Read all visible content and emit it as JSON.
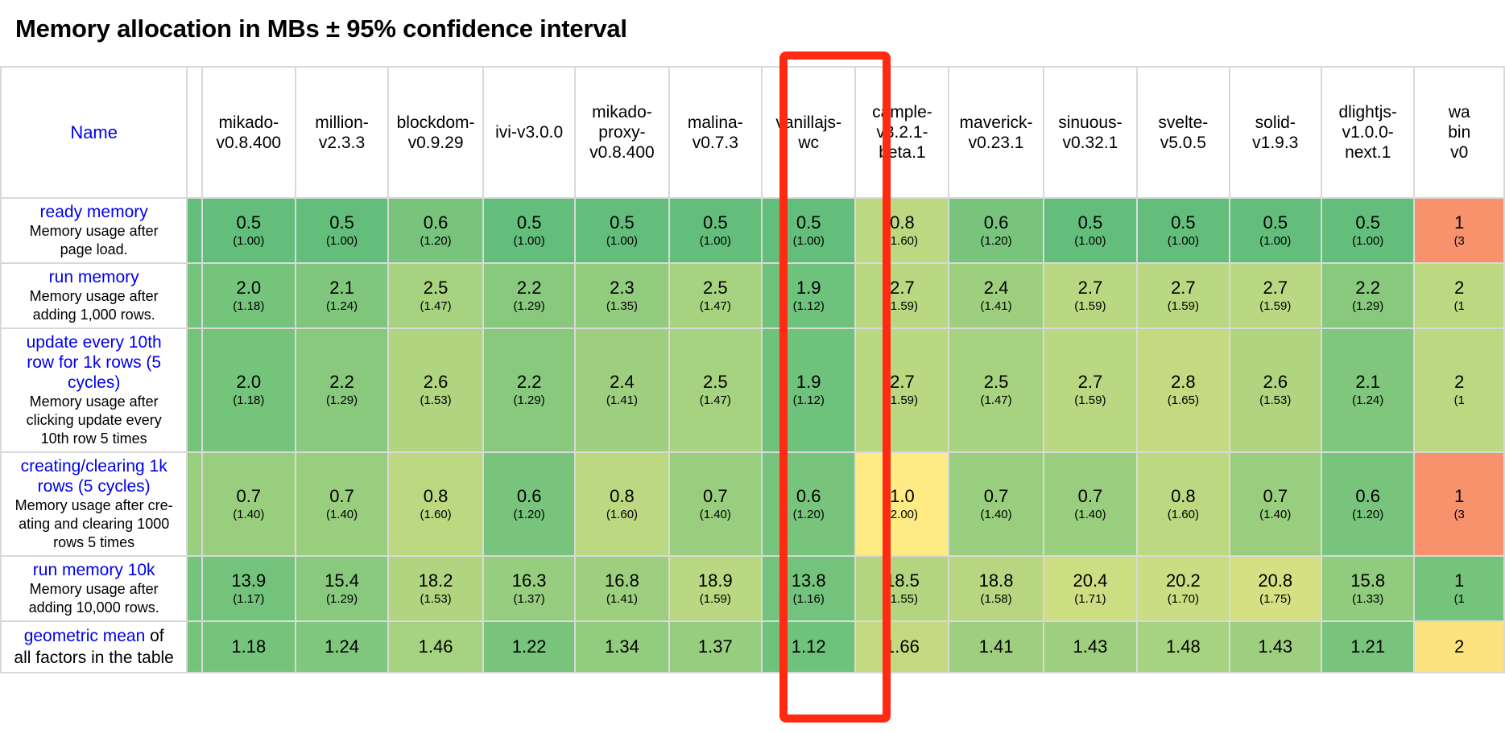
{
  "title": "Memory allocation in MBs ± 95% confidence interval",
  "name_header": "Name",
  "colors": {
    "c100": "#63be7b",
    "c112": "#6fc27c",
    "c116": "#73c37c",
    "c117": "#74c37c",
    "c118": "#75c47c",
    "c120": "#78c47d",
    "c124": "#80c77d",
    "c129": "#88c97e",
    "c133": "#90cb7e",
    "c135": "#92cc7e",
    "c137": "#96cd7f",
    "c140": "#9ace7f",
    "c141": "#9dcf7f",
    "c147": "#a7d27f",
    "c153": "#b0d480",
    "c155": "#b4d580",
    "c158": "#b8d680",
    "c159": "#bad781",
    "c160": "#bcd881",
    "c165": "#c4da81",
    "c170": "#cbdd82",
    "c171": "#cddd82",
    "c175": "#d4e082",
    "c200": "#ffeb84",
    "c214": "#fde37e",
    "c350": "#f8926c",
    "highlight": "#ff2a12",
    "link": "#0000ee"
  },
  "frameworks": [
    "mikado-\nv0.8.400",
    "million-\nv2.3.3",
    "blockdom-\nv0.9.29",
    "ivi-v3.0.0",
    "mikado-\nproxy-\nv0.8.400",
    "malina-\nv0.7.3",
    "vanillajs-\nwc",
    "cample-\nv3.2.1-\nbeta.1",
    "maverick-\nv0.23.1",
    "sinuous-\nv0.32.1",
    "svelte-\nv5.0.5",
    "solid-\nv1.9.3",
    "dlightjs-\nv1.0.0-\nnext.1",
    "wa\nbin\nv0"
  ],
  "rows": [
    {
      "title": "ready memory",
      "desc": "Memory usage after\npage load.",
      "height": 75,
      "cells": [
        {
          "v": "0.5",
          "f": "(1.00)",
          "c": "c100"
        },
        {
          "v": "0.5",
          "f": "(1.00)",
          "c": "c100"
        },
        {
          "v": "0.6",
          "f": "(1.20)",
          "c": "c120"
        },
        {
          "v": "0.5",
          "f": "(1.00)",
          "c": "c100"
        },
        {
          "v": "0.5",
          "f": "(1.00)",
          "c": "c100"
        },
        {
          "v": "0.5",
          "f": "(1.00)",
          "c": "c100"
        },
        {
          "v": "0.5",
          "f": "(1.00)",
          "c": "c100"
        },
        {
          "v": "0.8",
          "f": "(1.60)",
          "c": "c160"
        },
        {
          "v": "0.6",
          "f": "(1.20)",
          "c": "c120"
        },
        {
          "v": "0.5",
          "f": "(1.00)",
          "c": "c100"
        },
        {
          "v": "0.5",
          "f": "(1.00)",
          "c": "c100"
        },
        {
          "v": "0.5",
          "f": "(1.00)",
          "c": "c100"
        },
        {
          "v": "0.5",
          "f": "(1.00)",
          "c": "c100"
        },
        {
          "v": "1",
          "f": "(3",
          "c": "c350"
        }
      ]
    },
    {
      "title": "run memory",
      "desc": "Memory usage after\nadding 1,000 rows.",
      "height": 75,
      "cells": [
        {
          "v": "2.0",
          "f": "(1.18)",
          "c": "c118"
        },
        {
          "v": "2.1",
          "f": "(1.24)",
          "c": "c124"
        },
        {
          "v": "2.5",
          "f": "(1.47)",
          "c": "c147"
        },
        {
          "v": "2.2",
          "f": "(1.29)",
          "c": "c129"
        },
        {
          "v": "2.3",
          "f": "(1.35)",
          "c": "c135"
        },
        {
          "v": "2.5",
          "f": "(1.47)",
          "c": "c147"
        },
        {
          "v": "1.9",
          "f": "(1.12)",
          "c": "c112"
        },
        {
          "v": "2.7",
          "f": "(1.59)",
          "c": "c159"
        },
        {
          "v": "2.4",
          "f": "(1.41)",
          "c": "c141"
        },
        {
          "v": "2.7",
          "f": "(1.59)",
          "c": "c159"
        },
        {
          "v": "2.7",
          "f": "(1.59)",
          "c": "c159"
        },
        {
          "v": "2.7",
          "f": "(1.59)",
          "c": "c159"
        },
        {
          "v": "2.2",
          "f": "(1.29)",
          "c": "c129"
        },
        {
          "v": "2",
          "f": "(1",
          "c": "c160"
        }
      ]
    },
    {
      "title": "update every 10th\nrow for 1k rows (5\ncycles)",
      "desc": "Memory usage after\nclicking update every\n10th row 5 times",
      "height": 138,
      "cells": [
        {
          "v": "2.0",
          "f": "(1.18)",
          "c": "c118"
        },
        {
          "v": "2.2",
          "f": "(1.29)",
          "c": "c129"
        },
        {
          "v": "2.6",
          "f": "(1.53)",
          "c": "c153"
        },
        {
          "v": "2.2",
          "f": "(1.29)",
          "c": "c129"
        },
        {
          "v": "2.4",
          "f": "(1.41)",
          "c": "c141"
        },
        {
          "v": "2.5",
          "f": "(1.47)",
          "c": "c147"
        },
        {
          "v": "1.9",
          "f": "(1.12)",
          "c": "c112"
        },
        {
          "v": "2.7",
          "f": "(1.59)",
          "c": "c159"
        },
        {
          "v": "2.5",
          "f": "(1.47)",
          "c": "c147"
        },
        {
          "v": "2.7",
          "f": "(1.59)",
          "c": "c159"
        },
        {
          "v": "2.8",
          "f": "(1.65)",
          "c": "c165"
        },
        {
          "v": "2.6",
          "f": "(1.53)",
          "c": "c153"
        },
        {
          "v": "2.1",
          "f": "(1.24)",
          "c": "c124"
        },
        {
          "v": "2",
          "f": "(1",
          "c": "c160"
        }
      ]
    },
    {
      "title": "creating/clearing 1k\nrows (5 cycles)",
      "desc": "Memory usage after cre-\nating and clearing 1000\nrows 5 times",
      "height": 117,
      "cells": [
        {
          "v": "0.7",
          "f": "(1.40)",
          "c": "c140"
        },
        {
          "v": "0.7",
          "f": "(1.40)",
          "c": "c140"
        },
        {
          "v": "0.8",
          "f": "(1.60)",
          "c": "c160"
        },
        {
          "v": "0.6",
          "f": "(1.20)",
          "c": "c120"
        },
        {
          "v": "0.8",
          "f": "(1.60)",
          "c": "c160"
        },
        {
          "v": "0.7",
          "f": "(1.40)",
          "c": "c140"
        },
        {
          "v": "0.6",
          "f": "(1.20)",
          "c": "c120"
        },
        {
          "v": "1.0",
          "f": "(2.00)",
          "c": "c200"
        },
        {
          "v": "0.7",
          "f": "(1.40)",
          "c": "c140"
        },
        {
          "v": "0.7",
          "f": "(1.40)",
          "c": "c140"
        },
        {
          "v": "0.8",
          "f": "(1.60)",
          "c": "c160"
        },
        {
          "v": "0.7",
          "f": "(1.40)",
          "c": "c140"
        },
        {
          "v": "0.6",
          "f": "(1.20)",
          "c": "c120"
        },
        {
          "v": "1",
          "f": "(3",
          "c": "c350"
        }
      ]
    },
    {
      "title": "run memory 10k",
      "desc": "Memory usage after\nadding 10,000 rows.",
      "height": 75,
      "cells": [
        {
          "v": "13.9",
          "f": "(1.17)",
          "c": "c117"
        },
        {
          "v": "15.4",
          "f": "(1.29)",
          "c": "c129"
        },
        {
          "v": "18.2",
          "f": "(1.53)",
          "c": "c153"
        },
        {
          "v": "16.3",
          "f": "(1.37)",
          "c": "c137"
        },
        {
          "v": "16.8",
          "f": "(1.41)",
          "c": "c141"
        },
        {
          "v": "18.9",
          "f": "(1.59)",
          "c": "c159"
        },
        {
          "v": "13.8",
          "f": "(1.16)",
          "c": "c116"
        },
        {
          "v": "18.5",
          "f": "(1.55)",
          "c": "c155"
        },
        {
          "v": "18.8",
          "f": "(1.58)",
          "c": "c158"
        },
        {
          "v": "20.4",
          "f": "(1.71)",
          "c": "c171"
        },
        {
          "v": "20.2",
          "f": "(1.70)",
          "c": "c170"
        },
        {
          "v": "20.8",
          "f": "(1.75)",
          "c": "c175"
        },
        {
          "v": "15.8",
          "f": "(1.33)",
          "c": "c133"
        },
        {
          "v": "1",
          "f": "(1",
          "c": "c118"
        }
      ]
    }
  ],
  "geomean": {
    "link_text": "geometric mean",
    "text": " of\nall factors in the table",
    "height": 60,
    "cells": [
      {
        "v": "1.18",
        "c": "c118"
      },
      {
        "v": "1.24",
        "c": "c124"
      },
      {
        "v": "1.46",
        "c": "c147"
      },
      {
        "v": "1.22",
        "c": "c120"
      },
      {
        "v": "1.34",
        "c": "c135"
      },
      {
        "v": "1.37",
        "c": "c137"
      },
      {
        "v": "1.12",
        "c": "c112"
      },
      {
        "v": "1.66",
        "c": "c165"
      },
      {
        "v": "1.41",
        "c": "c141"
      },
      {
        "v": "1.43",
        "c": "c141"
      },
      {
        "v": "1.48",
        "c": "c147"
      },
      {
        "v": "1.43",
        "c": "c141"
      },
      {
        "v": "1.21",
        "c": "c120"
      },
      {
        "v": "2",
        "c": "c214"
      }
    ]
  }
}
